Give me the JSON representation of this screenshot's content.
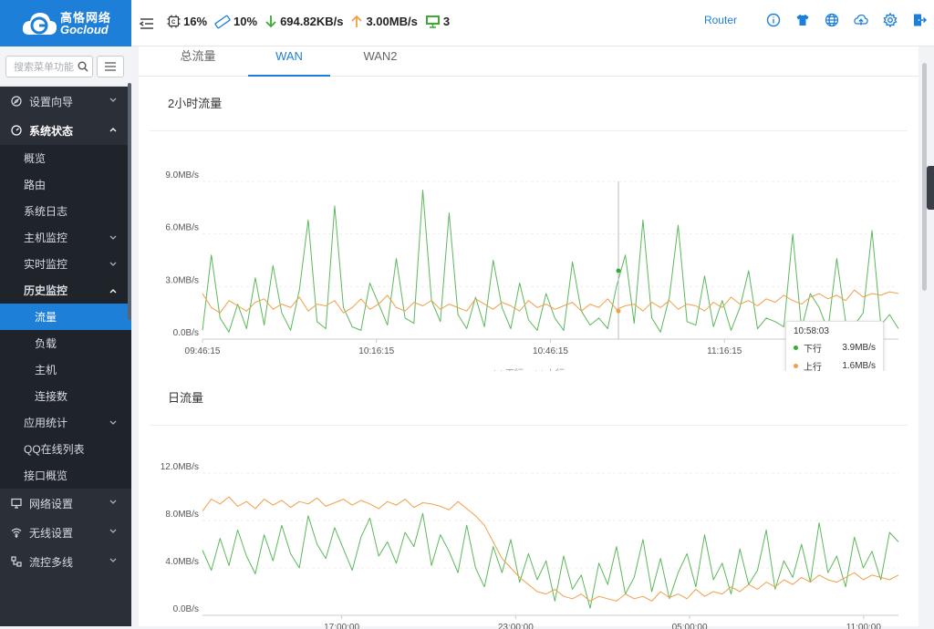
{
  "logo": {
    "cn": "高恪网络",
    "en": "Gocloud"
  },
  "topbar": {
    "cpu": "16%",
    "mem": "10%",
    "down_speed": "694.82KB/s",
    "up_speed": "3.00MB/s",
    "devices": "3",
    "router_label": "Router",
    "icons": [
      "info-icon",
      "shirt-icon",
      "globe-icon",
      "cloud-upload-icon",
      "gear-icon",
      "logout-icon"
    ]
  },
  "sidebar": {
    "search_placeholder": "搜索菜单功能",
    "items": [
      {
        "label": "设置向导"
      },
      {
        "label": "系统状态"
      },
      {
        "label": "概览"
      },
      {
        "label": "路由"
      },
      {
        "label": "系统日志"
      },
      {
        "label": "主机监控"
      },
      {
        "label": "实时监控"
      },
      {
        "label": "历史监控"
      },
      {
        "label": "流量"
      },
      {
        "label": "负载"
      },
      {
        "label": "主机"
      },
      {
        "label": "连接数"
      },
      {
        "label": "应用统计"
      },
      {
        "label": "QQ在线列表"
      },
      {
        "label": "接口概览"
      },
      {
        "label": "网络设置"
      },
      {
        "label": "无线设置"
      },
      {
        "label": "流控多线"
      }
    ]
  },
  "tabs": [
    "总流量",
    "WAN",
    "WAN2"
  ],
  "section1": {
    "title": "2小时流量"
  },
  "section2": {
    "title": "日流量"
  },
  "legend": {
    "down": "下行",
    "up": "上行"
  },
  "tooltip": {
    "time": "10:58:03",
    "down_label": "下行",
    "down_value": "3.9MB/s",
    "up_label": "上行",
    "up_value": "1.6MB/s"
  },
  "colors": {
    "down": "#5cb85c",
    "up": "#f0a04b",
    "accent": "#1e7fd9"
  },
  "chart_data": [
    {
      "type": "line",
      "title": "2小时流量",
      "y_ticks": [
        "0.0B/s",
        "3.0MB/s",
        "6.0MB/s",
        "9.0MB/s"
      ],
      "x_ticks": [
        "09:46:15",
        "10:16:15",
        "10:46:15",
        "11:16:15"
      ],
      "ylim": [
        0,
        9
      ],
      "y_unit": "MB/s",
      "legend": "bottom-center",
      "series": [
        {
          "name": "下行",
          "values": [
            0.5,
            4.8,
            1.2,
            0.4,
            2.0,
            0.6,
            3.5,
            0.8,
            4.2,
            1.5,
            0.5,
            2.8,
            6.8,
            1.0,
            0.6,
            7.6,
            1.8,
            0.7,
            0.5,
            3.2,
            2.0,
            0.8,
            4.6,
            1.2,
            0.9,
            8.5,
            2.2,
            1.0,
            7.2,
            1.4,
            0.6,
            2.4,
            0.7,
            4.5,
            1.8,
            0.6,
            3.2,
            1.1,
            0.5,
            2.6,
            1.2,
            0.5,
            4.4,
            1.6,
            0.8,
            1.2,
            0.6,
            3.0,
            4.8,
            0.9,
            6.8,
            1.2,
            0.4,
            2.4,
            6.5,
            1.0,
            0.8,
            3.6,
            0.7,
            2.2,
            0.5,
            1.8,
            3.9,
            0.6,
            1.2,
            1.0,
            0.7,
            6.0,
            0.6,
            2.6,
            1.8,
            0.5,
            4.6,
            1.0,
            0.8,
            1.5,
            6.2,
            0.8,
            1.4,
            0.6
          ]
        },
        {
          "name": "上行",
          "values": [
            2.6,
            1.8,
            1.5,
            2.2,
            1.9,
            1.6,
            2.1,
            2.3,
            1.7,
            2.0,
            1.8,
            2.4,
            1.6,
            2.0,
            1.9,
            2.2,
            1.5,
            1.8,
            2.3,
            1.7,
            2.0,
            2.5,
            1.8,
            1.6,
            2.1,
            1.9,
            2.2,
            1.7,
            2.0,
            1.8,
            1.6,
            2.3,
            2.0,
            1.7,
            2.1,
            1.9,
            1.6,
            2.2,
            1.8,
            2.0,
            1.7,
            1.9,
            2.1,
            1.6,
            2.0,
            1.8,
            2.3,
            1.7,
            1.9,
            2.0,
            1.6,
            2.1,
            1.8,
            2.2,
            1.7,
            2.0,
            1.9,
            1.6,
            2.1,
            1.8,
            2.4,
            2.0,
            2.2,
            1.9,
            2.3,
            2.1,
            2.5,
            2.2,
            2.0,
            2.4,
            2.6,
            2.3,
            2.5,
            2.2,
            2.8,
            2.4,
            2.6,
            2.5,
            2.7,
            2.6
          ]
        }
      ]
    },
    {
      "type": "line",
      "title": "日流量",
      "y_ticks": [
        "0.0B/s",
        "4.0MB/s",
        "8.0MB/s",
        "12.0MB/s"
      ],
      "x_ticks": [
        "17:00:00",
        "23:00:00",
        "05:00:00",
        "11:00:00"
      ],
      "ylim": [
        0,
        12
      ],
      "y_unit": "MB/s",
      "series": [
        {
          "name": "下行",
          "values": [
            5.5,
            3.8,
            6.5,
            4.2,
            7.2,
            5.0,
            3.5,
            6.8,
            4.6,
            7.6,
            5.2,
            4.0,
            8.4,
            6.0,
            4.8,
            7.4,
            5.6,
            3.8,
            6.6,
            8.2,
            5.0,
            6.2,
            4.4,
            7.0,
            5.8,
            8.6,
            4.2,
            6.8,
            5.4,
            3.6,
            7.6,
            4.0,
            2.4,
            5.8,
            3.6,
            6.4,
            2.8,
            5.2,
            3.0,
            4.6,
            1.2,
            5.0,
            2.2,
            3.4,
            0.6,
            4.4,
            2.6,
            5.8,
            1.8,
            3.2,
            6.4,
            2.0,
            4.8,
            1.4,
            3.6,
            5.2,
            2.4,
            6.8,
            3.0,
            4.4,
            1.8,
            5.6,
            2.6,
            3.8,
            7.2,
            2.2,
            4.6,
            3.2,
            6.0,
            2.8,
            7.8,
            3.6,
            5.0,
            2.4,
            6.6,
            4.0,
            5.4,
            3.0,
            7.0,
            6.2
          ]
        },
        {
          "name": "上行",
          "values": [
            8.8,
            9.8,
            9.4,
            10.0,
            9.2,
            9.6,
            9.0,
            9.8,
            9.3,
            9.7,
            9.1,
            9.6,
            9.4,
            9.9,
            9.2,
            9.5,
            9.8,
            9.3,
            9.7,
            9.4,
            9.0,
            9.6,
            9.3,
            9.8,
            9.1,
            9.5,
            9.4,
            9.2,
            8.9,
            9.6,
            9.0,
            8.4,
            7.6,
            6.2,
            4.8,
            4.0,
            3.2,
            2.6,
            2.0,
            1.8,
            2.2,
            1.6,
            1.4,
            1.8,
            1.2,
            1.6,
            1.4,
            1.2,
            1.8,
            1.4,
            1.6,
            1.2,
            2.0,
            1.5,
            1.8,
            1.4,
            2.2,
            1.6,
            2.0,
            1.8,
            2.4,
            2.0,
            2.6,
            2.2,
            2.8,
            2.4,
            3.0,
            2.6,
            3.2,
            2.8,
            3.4,
            3.0,
            2.8,
            3.2,
            3.6,
            3.0,
            3.4,
            3.2,
            3.0,
            3.4
          ]
        }
      ]
    }
  ]
}
